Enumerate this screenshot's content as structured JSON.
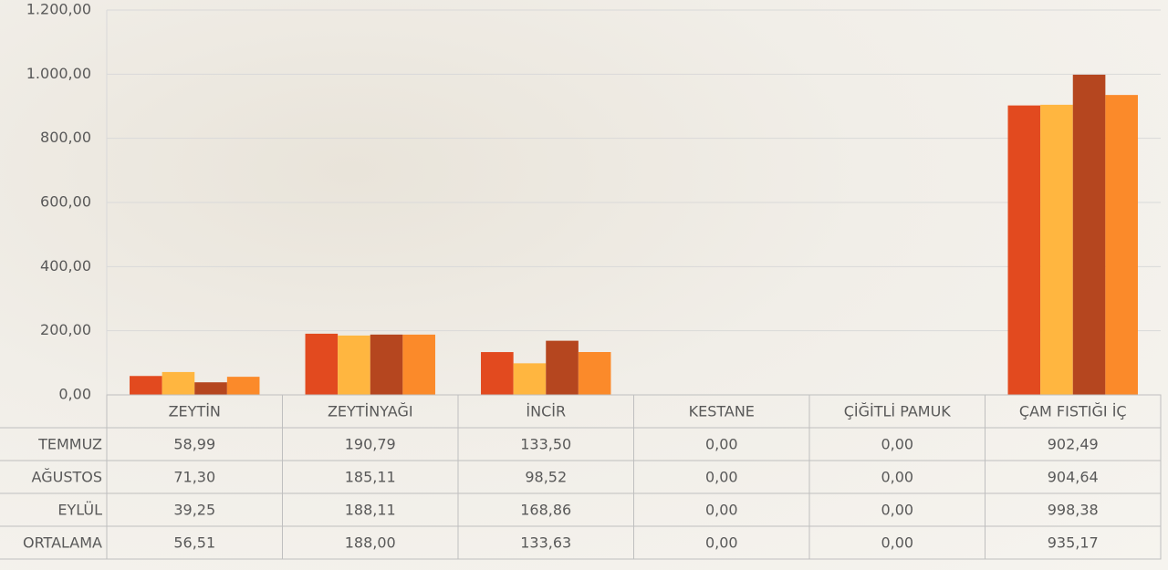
{
  "chart_data": {
    "type": "bar",
    "categories": [
      "ZEYTİN",
      "ZEYTİNYAĞI",
      "İNCİR",
      "KESTANE",
      "ÇİĞİTLİ PAMUK",
      "ÇAM FISTIĞI İÇ"
    ],
    "series": [
      {
        "name": "TEMMUZ",
        "color": "#e24a1f",
        "values": [
          58.99,
          190.79,
          133.5,
          0,
          0,
          902.49
        ],
        "value_labels": [
          "58,99",
          "190,79",
          "133,50",
          "0,00",
          "0,00",
          "902,49"
        ]
      },
      {
        "name": "AĞUSTOS",
        "color": "#ffb640",
        "values": [
          71.3,
          185.11,
          98.52,
          0,
          0,
          904.64
        ],
        "value_labels": [
          "71,30",
          "185,11",
          "98,52",
          "0,00",
          "0,00",
          "904,64"
        ]
      },
      {
        "name": "EYLÜL",
        "color": "#b5461f",
        "values": [
          39.25,
          188.11,
          168.86,
          0,
          0,
          998.38
        ],
        "value_labels": [
          "39,25",
          "188,11",
          "168,86",
          "0,00",
          "0,00",
          "998,38"
        ]
      },
      {
        "name": "ORTALAMA",
        "color": "#fb8a2a",
        "values": [
          56.51,
          188.0,
          133.63,
          0,
          0,
          935.17
        ],
        "value_labels": [
          "56,51",
          "188,00",
          "133,63",
          "0,00",
          "0,00",
          "935,17"
        ]
      }
    ],
    "ylim": [
      0,
      1200
    ],
    "yticks": [
      {
        "value": 0,
        "label": "0,00"
      },
      {
        "value": 200,
        "label": "200,00"
      },
      {
        "value": 400,
        "label": "400,00"
      },
      {
        "value": 600,
        "label": "600,00"
      },
      {
        "value": 800,
        "label": "800,00"
      },
      {
        "value": 1000,
        "label": "1.000,00"
      },
      {
        "value": 1200,
        "label": "1.200,00"
      }
    ],
    "grid": true
  }
}
